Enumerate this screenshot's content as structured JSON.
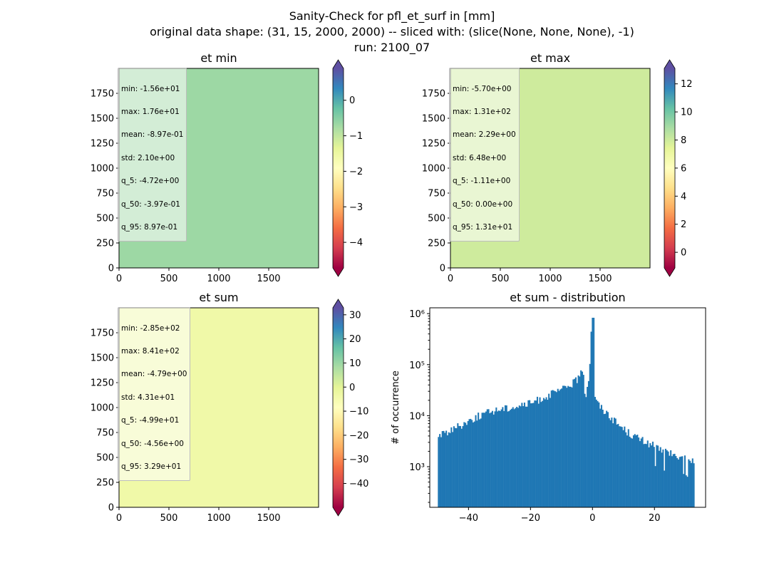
{
  "title": {
    "line1": "Sanity-Check for pfl_et_surf in [mm]",
    "line2": "original data shape: (31, 15, 2000, 2000) -- sliced with: (slice(None, None, None), -1)",
    "line3": "run: 2100_07"
  },
  "chart_data": [
    {
      "type": "heatmap",
      "title": "et min",
      "xlim": [
        0,
        2000
      ],
      "ylim": [
        0,
        2000
      ],
      "xticks": [
        "0",
        "500",
        "1000",
        "1500"
      ],
      "yticks": [
        "0",
        "250",
        "500",
        "750",
        "1000",
        "1250",
        "1500",
        "1750"
      ],
      "colorbar": {
        "cmap": "Spectral",
        "vmin": -4.72,
        "vmax": 0.897,
        "ticks": [
          "0",
          "−1",
          "−2",
          "−3",
          "−4"
        ],
        "extend": "both"
      },
      "stats": [
        "min: -1.56e+01",
        "max: 1.76e+01",
        "mean: -8.97e-01",
        "std: 2.10e+00",
        "q_5: -4.72e+00",
        "q_50: -3.97e-01",
        "q_95: 8.97e-01"
      ]
    },
    {
      "type": "heatmap",
      "title": "et max",
      "xlim": [
        0,
        2000
      ],
      "ylim": [
        0,
        2000
      ],
      "xticks": [
        "0",
        "500",
        "1000",
        "1500"
      ],
      "yticks": [
        "0",
        "250",
        "500",
        "750",
        "1000",
        "1250",
        "1500",
        "1750"
      ],
      "colorbar": {
        "cmap": "Spectral",
        "vmin": -1.11,
        "vmax": 13.1,
        "ticks": [
          "0",
          "2",
          "4",
          "6",
          "8",
          "10",
          "12"
        ],
        "extend": "both"
      },
      "stats": [
        "min: -5.70e+00",
        "max: 1.31e+02",
        "mean: 2.29e+00",
        "std: 6.48e+00",
        "q_5: -1.11e+00",
        "q_50: 0.00e+00",
        "q_95: 1.31e+01"
      ]
    },
    {
      "type": "heatmap",
      "title": "et sum",
      "xlim": [
        0,
        2000
      ],
      "ylim": [
        0,
        2000
      ],
      "xticks": [
        "0",
        "500",
        "1000",
        "1500"
      ],
      "yticks": [
        "0",
        "250",
        "500",
        "750",
        "1000",
        "1250",
        "1500",
        "1750"
      ],
      "colorbar": {
        "cmap": "Spectral",
        "vmin": -49.9,
        "vmax": 32.9,
        "ticks": [
          "30",
          "20",
          "10",
          "0",
          "−10",
          "−20",
          "−30",
          "−40"
        ],
        "extend": "both"
      },
      "stats": [
        "min: -2.85e+02",
        "max: 8.41e+02",
        "mean: -4.79e+00",
        "std: 4.31e+01",
        "q_5: -4.99e+01",
        "q_50: -4.56e+00",
        "q_95: 3.29e+01"
      ]
    },
    {
      "type": "bar",
      "title": "et sum - distribution",
      "ylabel": "# of occurrence",
      "xlabel": "",
      "yscale": "log",
      "xlim": [
        -52.5,
        36.5
      ],
      "ylim": [
        160,
        1300000
      ],
      "xticks": [
        "−40",
        "−20",
        "0",
        "20"
      ],
      "yticks": [
        "10³",
        "10⁴",
        "10⁵",
        "10⁶"
      ],
      "color": "#1f77b4",
      "bin_range": [
        -49.9,
        32.9
      ],
      "bins": 200,
      "profile": [
        [
          -49.9,
          4000
        ],
        [
          -45,
          5500
        ],
        [
          -40,
          8000
        ],
        [
          -35,
          11000
        ],
        [
          -30,
          13500
        ],
        [
          -25,
          15000
        ],
        [
          -20,
          17500
        ],
        [
          -15,
          24000
        ],
        [
          -10,
          32000
        ],
        [
          -6,
          45000
        ],
        [
          -4,
          60000
        ],
        [
          -3,
          85000
        ],
        [
          -2.5,
          30000
        ],
        [
          -2,
          27000
        ],
        [
          -1,
          70000
        ],
        [
          -0.2,
          830000
        ],
        [
          0.3,
          45000
        ],
        [
          1,
          20000
        ],
        [
          3,
          14000
        ],
        [
          5,
          11000
        ],
        [
          8,
          7000
        ],
        [
          12,
          4500
        ],
        [
          16,
          3300
        ],
        [
          20,
          2600
        ],
        [
          25,
          1800
        ],
        [
          30,
          1400
        ],
        [
          32.9,
          1200
        ]
      ]
    }
  ]
}
